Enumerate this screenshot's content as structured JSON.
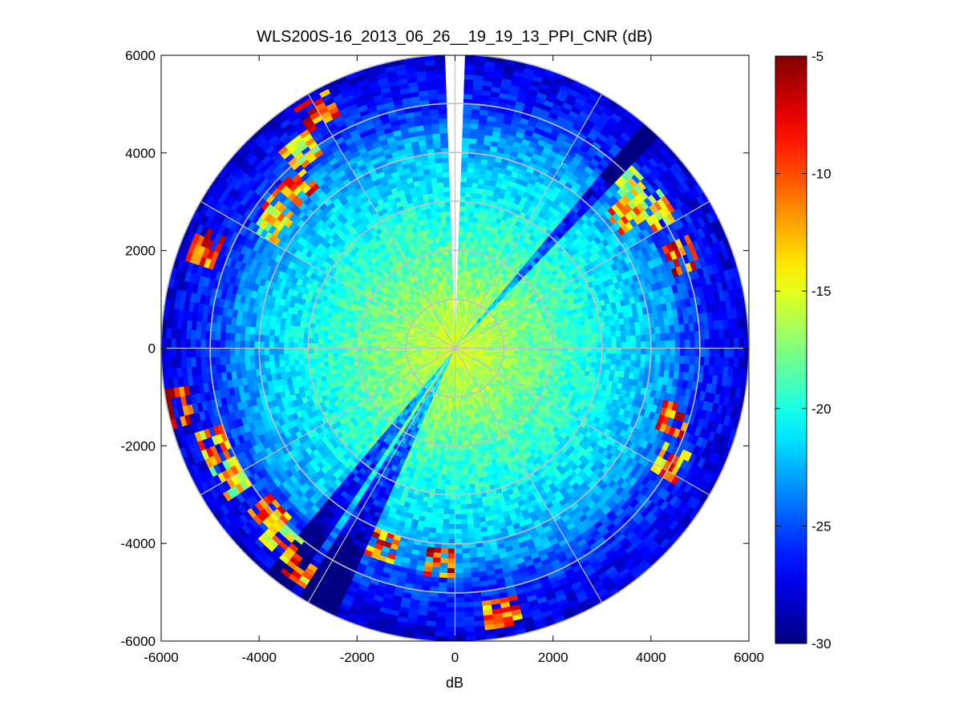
{
  "chart_data": {
    "type": "heatmap",
    "subtype": "polar-ppi",
    "title": "WLS200S-16_2013_06_26__19_19_13_PPI_CNR (dB)",
    "xlabel": "dB",
    "ylabel": "",
    "xlim": [
      -6000,
      6000
    ],
    "ylim": [
      -6000,
      6000
    ],
    "x_ticks": [
      -6000,
      -4000,
      -2000,
      0,
      2000,
      4000,
      6000
    ],
    "y_ticks": [
      6000,
      4000,
      2000,
      0,
      -2000,
      -4000,
      -6000
    ],
    "x_tick_labels": [
      "-6000",
      "-4000",
      "-2000",
      "0",
      "2000",
      "4000",
      "6000"
    ],
    "y_tick_labels": [
      "6000",
      "4000",
      "2000",
      "0",
      "-2000",
      "-4000",
      "-6000"
    ],
    "max_range": 6000,
    "range_rings": [
      1000,
      2000,
      3000,
      4000,
      5000,
      6000
    ],
    "azimuth_spokes_deg": [
      0,
      30,
      60,
      90,
      120,
      150,
      180,
      210,
      240,
      270,
      300,
      330
    ],
    "range_gate_m": 100,
    "azimuth_step_deg": 2,
    "blanked_sectors_deg": [
      [
        358,
        2
      ]
    ],
    "low_signal_wedges_deg": [
      [
        205,
        212
      ],
      [
        215,
        220
      ],
      [
        40,
        44
      ]
    ],
    "hotspots": [
      {
        "az_deg": 330,
        "range_m": 5600,
        "value_db": -5
      },
      {
        "az_deg": 322,
        "range_m": 5100,
        "value_db": -9
      },
      {
        "az_deg": 316,
        "range_m": 4600,
        "value_db": -6
      },
      {
        "az_deg": 310,
        "range_m": 4600,
        "value_db": -8
      },
      {
        "az_deg": 304,
        "range_m": 4500,
        "value_db": -11
      },
      {
        "az_deg": 292,
        "range_m": 5500,
        "value_db": -6
      },
      {
        "az_deg": 258,
        "range_m": 5800,
        "value_db": -5
      },
      {
        "az_deg": 248,
        "range_m": 5300,
        "value_db": -8
      },
      {
        "az_deg": 240,
        "range_m": 5300,
        "value_db": -10
      },
      {
        "az_deg": 228,
        "range_m": 5100,
        "value_db": -6
      },
      {
        "az_deg": 222,
        "range_m": 5300,
        "value_db": -9
      },
      {
        "az_deg": 215,
        "range_m": 5500,
        "value_db": -7
      },
      {
        "az_deg": 200,
        "range_m": 4300,
        "value_db": -6
      },
      {
        "az_deg": 184,
        "range_m": 4400,
        "value_db": -5
      },
      {
        "az_deg": 170,
        "range_m": 5500,
        "value_db": -6
      },
      {
        "az_deg": 118,
        "range_m": 5000,
        "value_db": -7
      },
      {
        "az_deg": 108,
        "range_m": 4700,
        "value_db": -5
      },
      {
        "az_deg": 68,
        "range_m": 5000,
        "value_db": -5
      },
      {
        "az_deg": 56,
        "range_m": 5000,
        "value_db": -9
      },
      {
        "az_deg": 52,
        "range_m": 4400,
        "value_db": -8
      },
      {
        "az_deg": 48,
        "range_m": 4900,
        "value_db": -12
      }
    ],
    "colorbar": {
      "min": -30,
      "max": -5,
      "ticks": [
        -5,
        -10,
        -15,
        -20,
        -25,
        -30
      ],
      "tick_labels": [
        "-5",
        "-10",
        "-15",
        "-20",
        "-25",
        "-30"
      ],
      "colormap": "jet"
    },
    "grid": true,
    "grid_color": "#c0c0c0"
  }
}
